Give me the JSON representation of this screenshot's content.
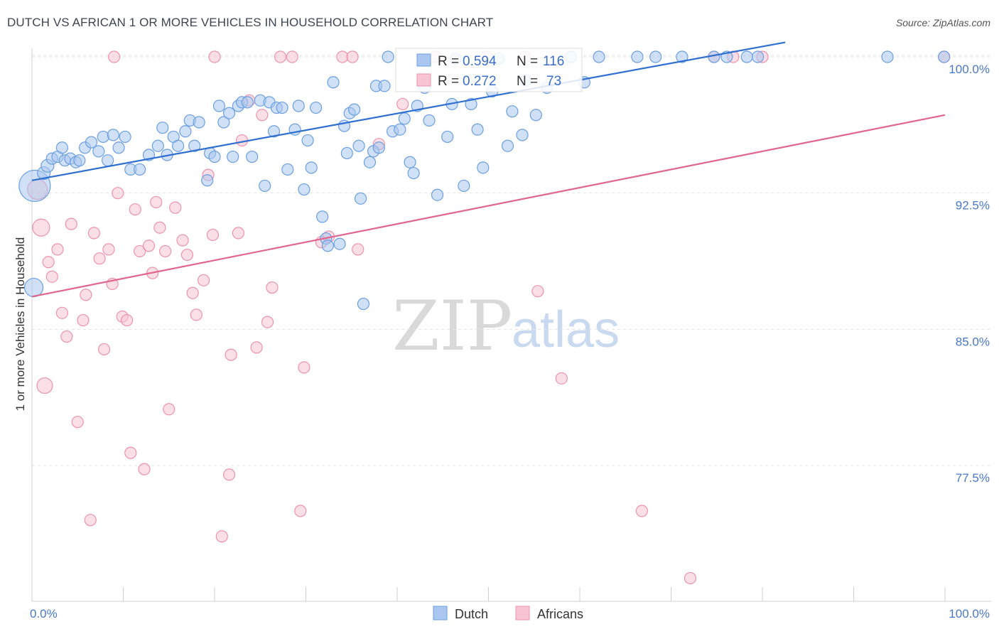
{
  "header": {
    "title": "DUTCH VS AFRICAN 1 OR MORE VEHICLES IN HOUSEHOLD CORRELATION CHART",
    "source": "Source: ZipAtlas.com"
  },
  "watermark": {
    "zip": "ZIP",
    "atlas": "atlas"
  },
  "legend": {
    "r_label": "R =",
    "n_label": "N =",
    "entries": [
      {
        "r": "0.594",
        "n": "116"
      },
      {
        "r": "0.272",
        "n": "73"
      }
    ]
  },
  "bottom_legend": [
    "Dutch",
    "Africans"
  ],
  "colors": {
    "dutch_fill": "#a9c7ef",
    "dutch_stroke": "#6b9fe0",
    "dutch_line": "#2f6fd0",
    "africans_fill": "#f7c4d3",
    "africans_stroke": "#eb93ae",
    "africans_line": "#e0658f",
    "tick_label": "#4a78c9",
    "grid": "#e3e3e3"
  },
  "chart_data": {
    "type": "scatter",
    "title": "DUTCH VS AFRICAN 1 OR MORE VEHICLES IN HOUSEHOLD CORRELATION CHART",
    "xlabel": "",
    "ylabel": "1 or more Vehicles in Household",
    "xlim": [
      0,
      100
    ],
    "ylim": [
      70,
      100.8
    ],
    "x_tick_labels": [
      "0.0%",
      "100.0%"
    ],
    "y_ticks": [
      77.5,
      85.0,
      92.5,
      100.0
    ],
    "y_tick_labels": [
      "77.5%",
      "85.0%",
      "92.5%",
      "100.0%"
    ],
    "grid": true,
    "legend_position": "top-center",
    "series": [
      {
        "name": "Dutch",
        "r": 0.594,
        "n": 116,
        "trend": {
          "x": [
            0,
            82.5
          ],
          "y": [
            93.2,
            100.8
          ]
        },
        "points": [
          [
            0.3,
            92.9,
            22
          ],
          [
            1.3,
            93.6,
            9
          ],
          [
            1.7,
            94.0,
            9
          ],
          [
            2.2,
            94.4,
            8
          ],
          [
            2.8,
            94.5,
            8
          ],
          [
            3.3,
            95.0,
            8
          ],
          [
            3.6,
            94.3,
            8
          ],
          [
            4.2,
            94.4,
            8
          ],
          [
            4.8,
            94.2,
            8
          ],
          [
            5.2,
            94.3,
            8
          ],
          [
            5.8,
            95.0,
            8
          ],
          [
            6.5,
            95.3,
            8
          ],
          [
            7.3,
            94.8,
            8
          ],
          [
            7.8,
            95.6,
            8
          ],
          [
            8.3,
            94.3,
            8
          ],
          [
            8.9,
            95.7,
            8
          ],
          [
            9.5,
            95.0,
            8
          ],
          [
            10.2,
            95.6,
            8
          ],
          [
            10.8,
            93.8,
            8
          ],
          [
            11.8,
            93.8,
            8
          ],
          [
            12.8,
            94.6,
            8
          ],
          [
            13.8,
            95.1,
            8
          ],
          [
            14.3,
            96.1,
            8
          ],
          [
            14.8,
            94.6,
            8
          ],
          [
            15.5,
            95.6,
            8
          ],
          [
            16.0,
            95.1,
            8
          ],
          [
            16.8,
            95.9,
            8
          ],
          [
            17.3,
            96.5,
            8
          ],
          [
            17.8,
            95.1,
            8
          ],
          [
            18.3,
            96.4,
            8
          ],
          [
            19.2,
            93.2,
            8
          ],
          [
            19.5,
            94.7,
            8
          ],
          [
            20.0,
            94.5,
            8
          ],
          [
            20.5,
            97.3,
            8
          ],
          [
            21.0,
            96.4,
            8
          ],
          [
            21.6,
            96.9,
            8
          ],
          [
            22.0,
            94.5,
            8
          ],
          [
            22.6,
            97.3,
            8
          ],
          [
            23.0,
            97.5,
            8
          ],
          [
            23.6,
            97.5,
            8
          ],
          [
            24.1,
            94.5,
            8
          ],
          [
            25.0,
            97.6,
            8
          ],
          [
            25.5,
            92.9,
            8
          ],
          [
            26.0,
            97.5,
            8
          ],
          [
            26.5,
            95.9,
            8
          ],
          [
            26.8,
            97.2,
            8
          ],
          [
            27.4,
            97.2,
            8
          ],
          [
            28.0,
            93.8,
            8
          ],
          [
            28.8,
            96.0,
            8
          ],
          [
            29.2,
            97.3,
            8
          ],
          [
            29.8,
            92.7,
            8
          ],
          [
            30.2,
            95.4,
            8
          ],
          [
            30.6,
            93.9,
            8
          ],
          [
            31.1,
            97.2,
            8
          ],
          [
            31.8,
            91.2,
            8
          ],
          [
            32.2,
            90.0,
            8
          ],
          [
            32.4,
            89.6,
            8
          ],
          [
            33.0,
            98.6,
            8
          ],
          [
            33.7,
            89.7,
            8
          ],
          [
            34.2,
            96.2,
            8
          ],
          [
            34.5,
            94.7,
            8
          ],
          [
            34.8,
            96.9,
            8
          ],
          [
            35.3,
            97.1,
            8
          ],
          [
            35.8,
            95.1,
            8
          ],
          [
            36.0,
            92.2,
            8
          ],
          [
            36.3,
            86.4,
            8
          ],
          [
            37.0,
            94.2,
            8
          ],
          [
            37.4,
            94.8,
            8
          ],
          [
            37.7,
            98.4,
            8
          ],
          [
            38.0,
            95.0,
            8
          ],
          [
            38.6,
            98.4,
            8
          ],
          [
            39.0,
            100.0,
            8
          ],
          [
            39.5,
            95.9,
            8
          ],
          [
            40.3,
            96.0,
            8
          ],
          [
            40.8,
            96.6,
            8
          ],
          [
            41.4,
            94.2,
            8
          ],
          [
            41.8,
            93.6,
            8
          ],
          [
            42.2,
            97.3,
            8
          ],
          [
            43.0,
            98.3,
            8
          ],
          [
            43.5,
            96.5,
            8
          ],
          [
            44.4,
            92.4,
            8
          ],
          [
            45.5,
            95.6,
            8
          ],
          [
            46.0,
            97.4,
            8
          ],
          [
            46.4,
            99.9,
            8
          ],
          [
            47.3,
            92.9,
            8
          ],
          [
            48.1,
            97.4,
            8
          ],
          [
            48.8,
            96.0,
            8
          ],
          [
            49.4,
            93.9,
            8
          ],
          [
            50.4,
            98.1,
            8
          ],
          [
            51.1,
            99.9,
            8
          ],
          [
            52.1,
            95.1,
            8
          ],
          [
            52.6,
            97.0,
            8
          ],
          [
            53.7,
            95.7,
            8
          ],
          [
            54.1,
            98.7,
            8
          ],
          [
            55.2,
            96.8,
            8
          ],
          [
            56.4,
            98.3,
            8
          ],
          [
            59.0,
            100.0,
            8
          ],
          [
            60.5,
            98.6,
            8
          ],
          [
            62.1,
            100.0,
            8
          ],
          [
            66.3,
            100.0,
            8
          ],
          [
            68.3,
            100.0,
            8
          ],
          [
            71.2,
            100.0,
            8
          ],
          [
            74.7,
            100.0,
            8
          ],
          [
            76.1,
            100.0,
            8
          ],
          [
            78.3,
            100.0,
            8
          ],
          [
            79.5,
            100.0,
            8
          ],
          [
            93.7,
            100.0,
            8
          ],
          [
            99.9,
            100.0,
            8
          ],
          [
            0.2,
            87.3,
            13
          ]
        ]
      },
      {
        "name": "Africans",
        "r": 0.272,
        "n": 73,
        "trend": {
          "x": [
            0,
            100
          ],
          "y": [
            86.8,
            96.8
          ]
        },
        "points": [
          [
            0.6,
            92.7,
            14
          ],
          [
            1.0,
            90.6,
            12
          ],
          [
            1.4,
            81.9,
            11
          ],
          [
            1.8,
            88.7,
            8
          ],
          [
            2.2,
            87.9,
            8
          ],
          [
            2.8,
            89.4,
            8
          ],
          [
            3.3,
            85.9,
            8
          ],
          [
            3.8,
            84.6,
            8
          ],
          [
            4.3,
            90.8,
            8
          ],
          [
            5.0,
            79.9,
            8
          ],
          [
            5.6,
            85.5,
            8
          ],
          [
            5.9,
            86.9,
            8
          ],
          [
            6.4,
            74.5,
            8
          ],
          [
            6.8,
            90.3,
            8
          ],
          [
            7.4,
            88.9,
            8
          ],
          [
            7.9,
            83.9,
            8
          ],
          [
            8.4,
            89.4,
            8
          ],
          [
            8.8,
            87.5,
            8
          ],
          [
            9.4,
            92.5,
            8
          ],
          [
            9.9,
            85.7,
            8
          ],
          [
            10.4,
            85.5,
            8
          ],
          [
            10.8,
            78.2,
            8
          ],
          [
            11.3,
            91.6,
            8
          ],
          [
            11.8,
            89.3,
            8
          ],
          [
            12.3,
            77.3,
            8
          ],
          [
            12.8,
            89.6,
            8
          ],
          [
            13.2,
            88.1,
            8
          ],
          [
            13.6,
            92.0,
            8
          ],
          [
            14.0,
            90.6,
            8
          ],
          [
            14.6,
            89.3,
            8
          ],
          [
            15.0,
            80.6,
            8
          ],
          [
            15.7,
            91.7,
            8
          ],
          [
            16.5,
            89.9,
            8
          ],
          [
            17.0,
            89.1,
            8
          ],
          [
            17.6,
            87.0,
            8
          ],
          [
            18.0,
            85.8,
            8
          ],
          [
            18.8,
            87.7,
            8
          ],
          [
            19.3,
            93.5,
            8
          ],
          [
            19.8,
            90.2,
            8
          ],
          [
            20.0,
            100.0,
            8
          ],
          [
            20.8,
            73.6,
            8
          ],
          [
            21.6,
            77.0,
            8
          ],
          [
            21.8,
            83.6,
            8
          ],
          [
            22.6,
            90.3,
            8
          ],
          [
            23.0,
            95.4,
            8
          ],
          [
            23.8,
            97.6,
            8
          ],
          [
            24.6,
            84.0,
            8
          ],
          [
            25.2,
            96.8,
            8
          ],
          [
            25.8,
            85.4,
            8
          ],
          [
            26.3,
            87.3,
            8
          ],
          [
            27.2,
            100.0,
            8
          ],
          [
            28.5,
            100.0,
            8
          ],
          [
            29.4,
            75.0,
            8
          ],
          [
            29.8,
            82.9,
            8
          ],
          [
            31.7,
            89.8,
            8
          ],
          [
            32.5,
            90.1,
            8
          ],
          [
            34.0,
            100.0,
            8
          ],
          [
            35.1,
            100.0,
            8
          ],
          [
            35.7,
            89.4,
            8
          ],
          [
            38.0,
            95.2,
            8
          ],
          [
            40.6,
            97.4,
            8
          ],
          [
            44.2,
            100.0,
            8
          ],
          [
            49.8,
            100.0,
            8
          ],
          [
            54.0,
            100.0,
            8
          ],
          [
            55.4,
            87.1,
            8
          ],
          [
            58.0,
            82.3,
            8
          ],
          [
            66.8,
            75.0,
            8
          ],
          [
            72.1,
            71.3,
            8
          ],
          [
            74.7,
            100.0,
            8
          ],
          [
            76.8,
            100.0,
            8
          ],
          [
            80.0,
            100.0,
            8
          ],
          [
            99.9,
            100.0,
            8
          ],
          [
            9.0,
            100.0,
            8
          ]
        ]
      }
    ]
  }
}
